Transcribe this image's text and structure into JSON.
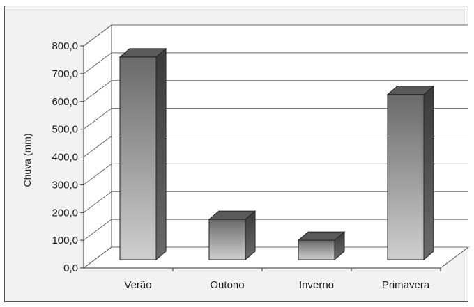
{
  "chart_data": {
    "type": "bar",
    "categories": [
      "Verão",
      "Outono",
      "Inverno",
      "Primavera"
    ],
    "values": [
      730,
      145,
      70,
      595
    ],
    "ylabel": "Chuva (mm)",
    "ylim": [
      0,
      800
    ],
    "yticks": [
      "0,0",
      "100,0",
      "200,0",
      "300,0",
      "400,0",
      "500,0",
      "600,0",
      "700,0",
      "800,0"
    ],
    "grid": true,
    "style": "3d-column",
    "bar_color": "#6e6e6e"
  }
}
